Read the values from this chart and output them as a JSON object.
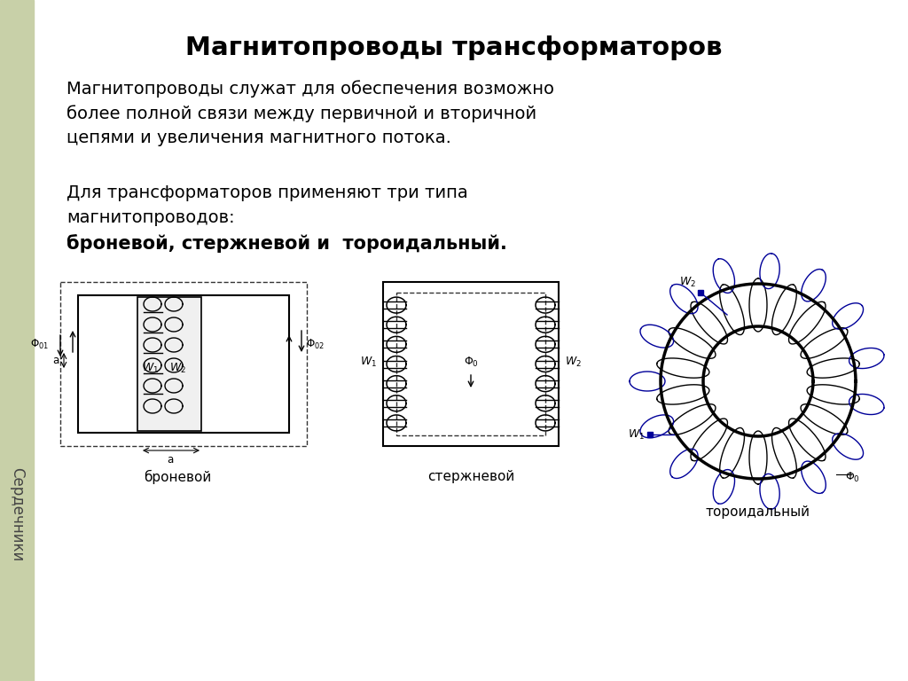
{
  "title": "Магнитопроводы трансформаторов",
  "paragraph1_line1": "Магнитопроводы служат для обеспечения возможно",
  "paragraph1_line2": "более полной связи между первичной и вторичной",
  "paragraph1_line3": "цепями и увеличения магнитного потока.",
  "paragraph2_line1": "Для трансформаторов применяют три типа",
  "paragraph2_line2": "магнитопроводов:",
  "paragraph2_line3_normal": "броневой, стержневой и  тороидальный.",
  "label_bronevoy": "броневой",
  "label_sterzhnevoy": "стержневой",
  "label_toroidal": "тороидальный",
  "sidebar_text": "Сердечники",
  "sidebar_color": "#c8d0a8",
  "background_color": "#ffffff",
  "text_color": "#000000"
}
